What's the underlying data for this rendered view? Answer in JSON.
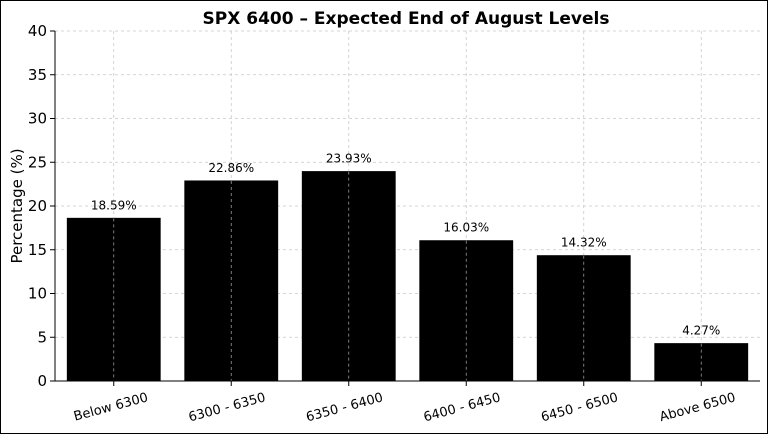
{
  "chart_data": {
    "type": "bar",
    "title": "SPX 6400 – Expected End of August Levels",
    "xlabel": "",
    "ylabel": "Percentage (%)",
    "ylim": [
      0,
      40
    ],
    "yticks": [
      0,
      5,
      10,
      15,
      20,
      25,
      30,
      35,
      40
    ],
    "grid": true,
    "categories": [
      "Below 6300",
      "6300 - 6350",
      "6350 - 6400",
      "6400 - 6450",
      "6450 - 6500",
      "Above 6500"
    ],
    "values": [
      18.59,
      22.86,
      23.93,
      16.03,
      14.32,
      4.27
    ],
    "data_labels": [
      "18.59%",
      "22.86%",
      "23.93%",
      "16.03%",
      "14.32%",
      "4.27%"
    ],
    "bar_color": "#000000"
  }
}
